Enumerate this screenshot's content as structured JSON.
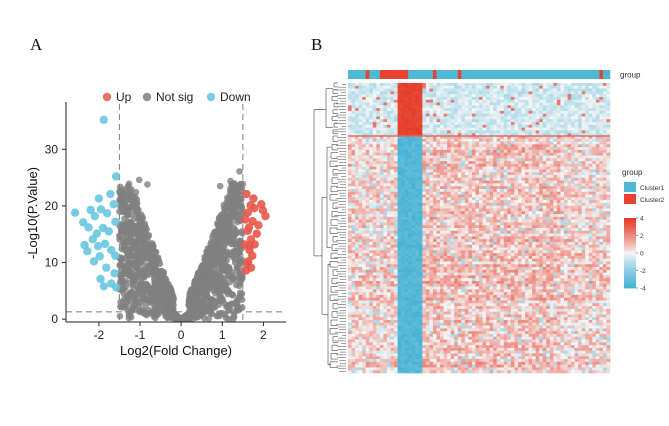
{
  "panels": {
    "a": "A",
    "b": "B"
  },
  "chart_data": [
    {
      "type": "scatter",
      "subtype": "volcano",
      "xlabel": "Log2(Fold Change)",
      "ylabel": "-Log10(P.Value)",
      "xlim": [
        -2.8,
        2.55
      ],
      "ylim": [
        -0.5,
        38
      ],
      "xticks": [
        "-2",
        "-1",
        "0",
        "1",
        "2"
      ],
      "yticks": [
        "0",
        "10",
        "20",
        "30"
      ],
      "xtick_values": [
        -2,
        -1,
        0,
        1,
        2
      ],
      "ytick_values": [
        0,
        10,
        20,
        30
      ],
      "thresholds": {
        "logfc": [
          -1.5,
          1.5
        ],
        "neglog10p": 1.3
      },
      "legend": {
        "position": "top",
        "entries": [
          "Up",
          "Not sig",
          "Down"
        ]
      },
      "colors": {
        "up": "#e8574a",
        "notsig": "#7f7f7f",
        "down": "#5fc3dd"
      },
      "series": [
        {
          "name": "Up",
          "points": [
            [
              1.62,
              18.8
            ],
            [
              1.78,
              19.6
            ],
            [
              1.95,
              20.3
            ],
            [
              1.74,
              17.3
            ],
            [
              1.88,
              16.6
            ],
            [
              2.05,
              18.2
            ],
            [
              1.65,
              16.2
            ],
            [
              1.84,
              15.1
            ],
            [
              1.7,
              14.1
            ],
            [
              1.79,
              13.2
            ],
            [
              1.66,
              12.2
            ],
            [
              1.73,
              11.2
            ],
            [
              1.63,
              10.2
            ],
            [
              1.7,
              9.1
            ],
            [
              1.58,
              8.6
            ],
            [
              1.76,
              21.3
            ],
            [
              1.69,
              20.1
            ],
            [
              1.99,
              19.2
            ],
            [
              1.56,
              17.6
            ],
            [
              1.62,
              15.6
            ],
            [
              1.55,
              13.2
            ],
            [
              1.59,
              22.1
            ],
            [
              1.6,
              9.8
            ],
            [
              1.67,
              12.9
            ]
          ]
        },
        {
          "name": "Not sig",
          "region": "volcano-cloud"
        },
        {
          "name": "Down",
          "points": [
            [
              -1.88,
              35.2
            ],
            [
              -1.58,
              25.2
            ],
            [
              -1.72,
              22.1
            ],
            [
              -2.0,
              21.3
            ],
            [
              -2.58,
              18.8
            ],
            [
              -2.38,
              17.1
            ],
            [
              -2.2,
              19.3
            ],
            [
              -2.1,
              18.2
            ],
            [
              -1.95,
              19.4
            ],
            [
              -1.8,
              18.7
            ],
            [
              -2.25,
              16.2
            ],
            [
              -1.9,
              16.1
            ],
            [
              -2.05,
              15.1
            ],
            [
              -1.76,
              15.5
            ],
            [
              -2.35,
              13.1
            ],
            [
              -2.15,
              14.1
            ],
            [
              -1.6,
              17.2
            ],
            [
              -1.85,
              13.3
            ],
            [
              -2.28,
              12.0
            ],
            [
              -1.7,
              12.2
            ],
            [
              -1.98,
              11.1
            ],
            [
              -1.6,
              11.2
            ],
            [
              -2.12,
              10.2
            ],
            [
              -1.82,
              9.1
            ],
            [
              -1.62,
              8.1
            ],
            [
              -1.96,
              7.1
            ],
            [
              -1.7,
              6.3
            ],
            [
              -1.58,
              5.6
            ],
            [
              -1.88,
              5.8
            ],
            [
              -2.02,
              12.9
            ],
            [
              -1.64,
              20.3
            ]
          ]
        }
      ]
    },
    {
      "type": "heatmap",
      "annotation_label": "group",
      "legend_title": "group",
      "groups": [
        {
          "name": "Cluster1",
          "color": "#4fb8d5"
        },
        {
          "name": "Cluster2",
          "color": "#e8432f"
        }
      ],
      "colorbar": {
        "ticks": [
          "4",
          "2",
          "0",
          "-2",
          "-4"
        ],
        "values": [
          4,
          2,
          0,
          -2,
          -4
        ]
      },
      "n_rows": 104,
      "n_cols": 74,
      "cluster2_columns": [
        5,
        9,
        10,
        11,
        12,
        13,
        14,
        15,
        16,
        24,
        31,
        71
      ]
    }
  ]
}
